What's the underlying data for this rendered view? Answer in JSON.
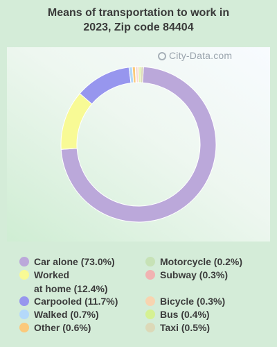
{
  "title": {
    "line1": "Means of transportation to work in",
    "line2": "2023, Zip code 84404"
  },
  "watermark": {
    "text": "City-Data.com",
    "icon": "magnifier-icon"
  },
  "chart_data": {
    "type": "pie",
    "title": "Means of transportation to work in 2023, Zip code 84404",
    "unit": "%",
    "legend": "bottom",
    "slices": [
      {
        "label": "Car alone (73.0%)",
        "category": "Car alone",
        "value": 73.0,
        "color": "#bba8da"
      },
      {
        "label": "Worked\nat home (12.4%)",
        "category": "Worked at home",
        "value": 12.4,
        "color": "#f8fa95"
      },
      {
        "label": "Carpooled (11.7%)",
        "category": "Carpooled",
        "value": 11.7,
        "color": "#9796ee"
      },
      {
        "label": "Walked (0.7%)",
        "category": "Walked",
        "value": 0.7,
        "color": "#b4d9fa"
      },
      {
        "label": "Other (0.6%)",
        "category": "Other",
        "value": 0.6,
        "color": "#fbc97b"
      },
      {
        "label": "Motorcycle (0.2%)",
        "category": "Motorcycle",
        "value": 0.2,
        "color": "#c7e2b6"
      },
      {
        "label": "Subway (0.3%)",
        "category": "Subway",
        "value": 0.3,
        "color": "#f1b3b2"
      },
      {
        "label": "Bicycle (0.3%)",
        "category": "Bicycle",
        "value": 0.3,
        "color": "#f8d4b0"
      },
      {
        "label": "Bus (0.4%)",
        "category": "Bus",
        "value": 0.4,
        "color": "#d5f192"
      },
      {
        "label": "Taxi (0.5%)",
        "category": "Taxi",
        "value": 0.5,
        "color": "#dcd9b8"
      }
    ]
  }
}
